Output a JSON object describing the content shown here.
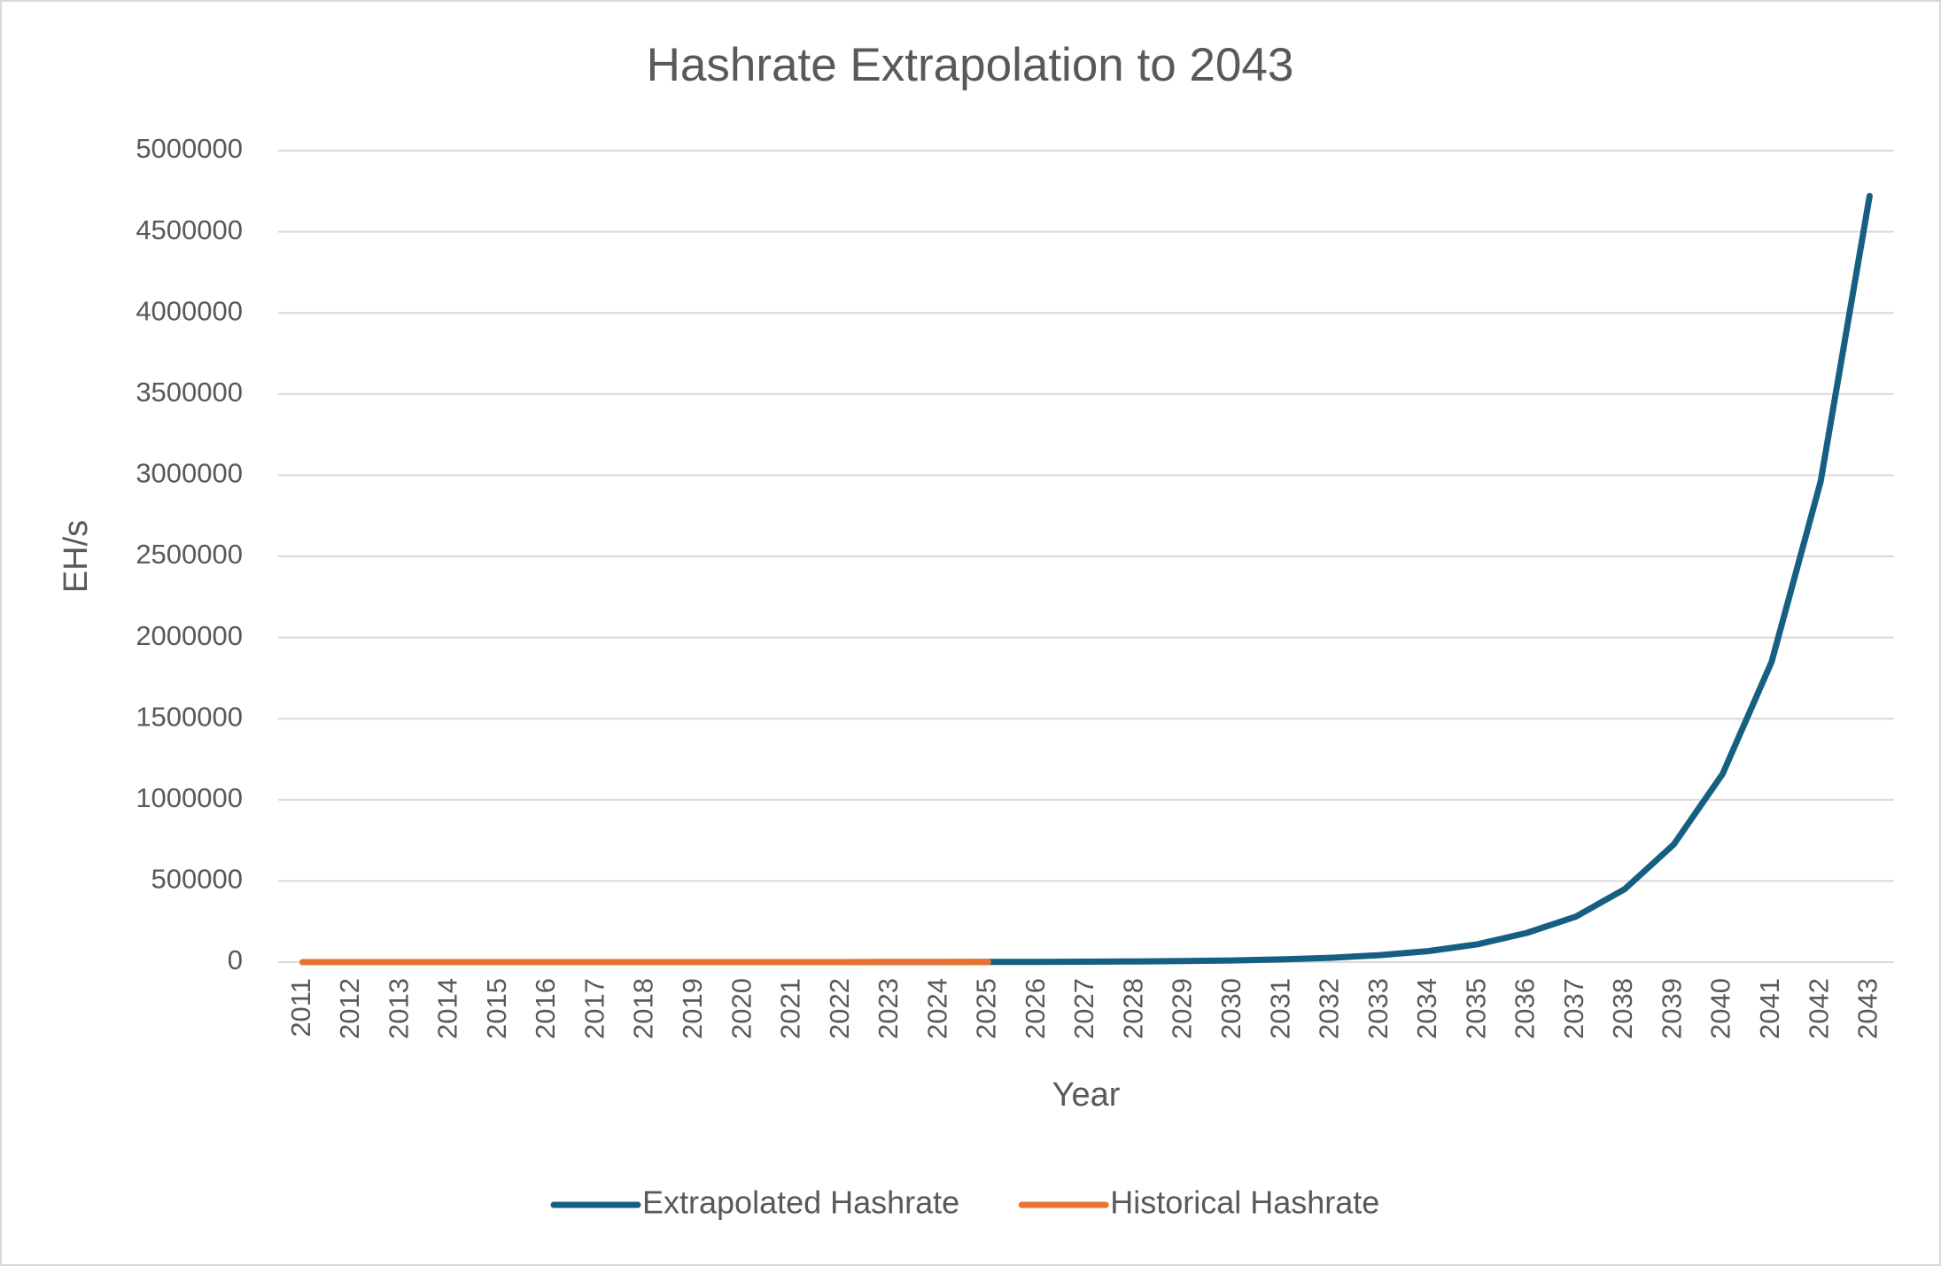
{
  "chart_data": {
    "type": "line",
    "title": "Hashrate Extrapolation to 2043",
    "x_label": "Year",
    "y_label": "EH/s",
    "categories": [
      "2011",
      "2012",
      "2013",
      "2014",
      "2015",
      "2016",
      "2017",
      "2018",
      "2019",
      "2020",
      "2021",
      "2022",
      "2023",
      "2024",
      "2025",
      "2026",
      "2027",
      "2028",
      "2029",
      "2030",
      "2031",
      "2032",
      "2033",
      "2034",
      "2035",
      "2036",
      "2037",
      "2038",
      "2039",
      "2040",
      "2041",
      "2042",
      "2043"
    ],
    "series": [
      {
        "name": "Extrapolated Hashrate",
        "color": "#156082",
        "values": [
          1.4,
          2.2,
          3.5,
          6,
          9,
          15,
          23,
          37,
          60,
          95,
          153,
          244,
          390,
          625,
          1000,
          1600,
          2600,
          4100,
          6600,
          10500,
          17000,
          27000,
          43000,
          68000,
          110000,
          180000,
          280000,
          450000,
          725000,
          1160000,
          1850000,
          2960000,
          4720000
        ]
      },
      {
        "name": "Historical Hashrate",
        "color": "#e97132",
        "values": [
          8e-06,
          2e-05,
          0.001,
          0.15,
          0.4,
          1.5,
          6,
          40,
          90,
          140,
          170,
          250,
          450,
          650,
          800,
          null,
          null,
          null,
          null,
          null,
          null,
          null,
          null,
          null,
          null,
          null,
          null,
          null,
          null,
          null,
          null,
          null,
          null
        ]
      }
    ],
    "ylim": [
      0,
      5000000
    ],
    "yticks": [
      0,
      500000,
      1000000,
      1500000,
      2000000,
      2500000,
      3000000,
      3500000,
      4000000,
      4500000,
      5000000
    ],
    "grid": true,
    "legend": "bottom"
  }
}
